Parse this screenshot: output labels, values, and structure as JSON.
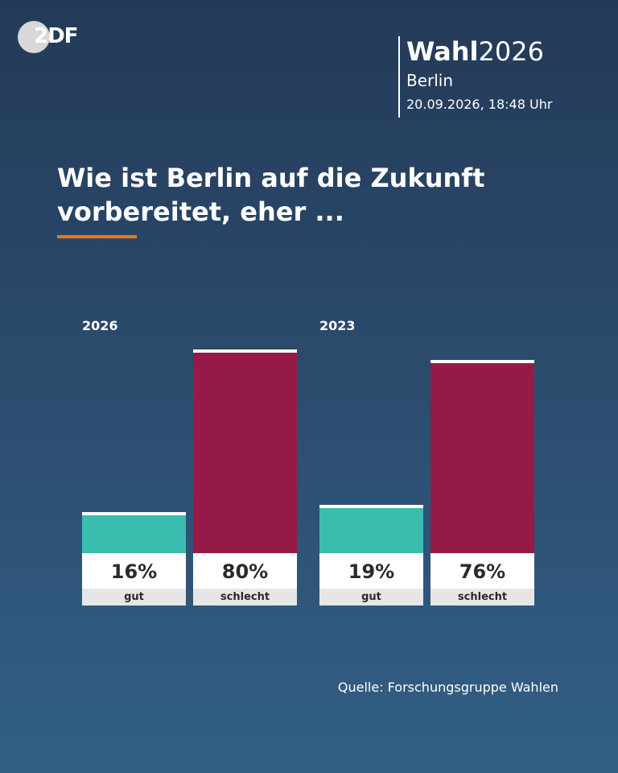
{
  "logo": {
    "text": "2DF"
  },
  "header": {
    "brand_bold": "Wahl",
    "brand_light": "2026",
    "region": "Berlin",
    "date": "20.09.2026, 18:48 Uhr"
  },
  "title_line1": "Wie ist Berlin auf die Zukunft",
  "title_line2": "vorbereitet, eher ...",
  "source": "Quelle: Forschungsgruppe Wahlen",
  "colors": {
    "gut": "#3bbdb0",
    "schlecht": "#961a48",
    "accent": "#e8761c"
  },
  "chart_data": {
    "type": "bar",
    "title": "Wie ist Berlin auf die Zukunft vorbereitet, eher ...",
    "groups": [
      {
        "label": "2026",
        "bars": [
          {
            "category": "gut",
            "value": 16,
            "label": "16%"
          },
          {
            "category": "schlecht",
            "value": 80,
            "label": "80%"
          }
        ]
      },
      {
        "label": "2023",
        "bars": [
          {
            "category": "gut",
            "value": 19,
            "label": "19%"
          },
          {
            "category": "schlecht",
            "value": 76,
            "label": "76%"
          }
        ]
      }
    ],
    "ylim": [
      0,
      100
    ]
  }
}
